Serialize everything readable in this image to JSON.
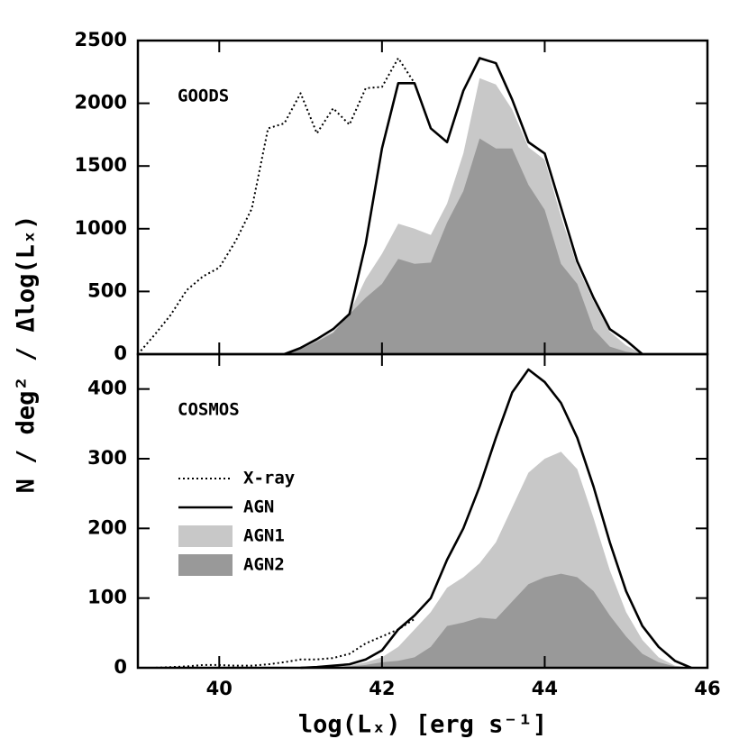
{
  "chart_data": [
    {
      "type": "line",
      "label": "GOODS",
      "ylabel": "N / deg² / Δlog(Lₓ)",
      "x": [
        39,
        39.2,
        39.4,
        39.6,
        39.8,
        40,
        40.2,
        40.4,
        40.6,
        40.8,
        41,
        41.2,
        41.4,
        41.6,
        41.8,
        42,
        42.2,
        42.4,
        42.6,
        42.8,
        43,
        43.2,
        43.4,
        43.6,
        43.8,
        44,
        44.2,
        44.4,
        44.6,
        44.8,
        45,
        45.2,
        45.4,
        45.6,
        45.8
      ],
      "xlim": [
        39,
        46
      ],
      "ylim": [
        0,
        2500
      ],
      "yticks": [
        0,
        500,
        1000,
        1500,
        2000,
        2500
      ],
      "series": [
        {
          "name": "X-ray",
          "style": "dotted",
          "color": "#000000",
          "values": [
            0,
            150,
            310,
            510,
            620,
            690,
            900,
            1160,
            1800,
            1840,
            2080,
            1760,
            1960,
            1830,
            2120,
            2130,
            2360,
            2160,
            null,
            null,
            null,
            null,
            null,
            null,
            null,
            null,
            null,
            null,
            null,
            null,
            null,
            null,
            null,
            null,
            null
          ]
        },
        {
          "name": "AGN",
          "style": "solid",
          "color": "#000000",
          "values": [
            null,
            null,
            null,
            null,
            null,
            null,
            null,
            null,
            null,
            0,
            50,
            120,
            200,
            320,
            880,
            1640,
            2160,
            2160,
            1800,
            1690,
            2100,
            2360,
            2320,
            2030,
            1690,
            1600,
            1170,
            740,
            450,
            200,
            110,
            0,
            null,
            null,
            null
          ]
        },
        {
          "name": "AGN1",
          "style": "area",
          "color": "#c8c8c8",
          "values": [
            null,
            null,
            null,
            null,
            null,
            null,
            null,
            null,
            null,
            0,
            40,
            110,
            180,
            330,
            600,
            800,
            1040,
            1000,
            950,
            1200,
            1600,
            2200,
            2150,
            1950,
            1650,
            1550,
            1100,
            700,
            420,
            180,
            70,
            0,
            null,
            null,
            null
          ]
        },
        {
          "name": "AGN2",
          "style": "area",
          "color": "#999999",
          "values": [
            null,
            null,
            null,
            null,
            null,
            null,
            null,
            null,
            null,
            0,
            40,
            100,
            170,
            320,
            450,
            560,
            760,
            720,
            730,
            1050,
            1300,
            1720,
            1640,
            1640,
            1350,
            1150,
            720,
            560,
            200,
            60,
            20,
            0,
            null,
            null,
            null
          ]
        }
      ]
    },
    {
      "type": "line",
      "label": "COSMOS",
      "xlabel": "log(Lₓ) [erg s⁻¹]",
      "legend": "center left",
      "x": [
        39,
        39.2,
        39.4,
        39.6,
        39.8,
        40,
        40.2,
        40.4,
        40.6,
        40.8,
        41,
        41.2,
        41.4,
        41.6,
        41.8,
        42,
        42.2,
        42.4,
        42.6,
        42.8,
        43,
        43.2,
        43.4,
        43.6,
        43.8,
        44,
        44.2,
        44.4,
        44.6,
        44.8,
        45,
        45.2,
        45.4,
        45.6,
        45.8
      ],
      "xlim": [
        39,
        46
      ],
      "xticks": [
        40,
        42,
        44,
        46
      ],
      "ylim": [
        0,
        450
      ],
      "yticks": [
        0,
        100,
        200,
        300,
        400
      ],
      "series": [
        {
          "name": "X-ray",
          "style": "dotted",
          "color": "#000000",
          "values": [
            0,
            0,
            1,
            2,
            4,
            4,
            3,
            3,
            5,
            8,
            12,
            12,
            14,
            20,
            35,
            45,
            55,
            70,
            null,
            null,
            null,
            null,
            null,
            null,
            null,
            null,
            null,
            null,
            null,
            null,
            null,
            null,
            null,
            null,
            null
          ]
        },
        {
          "name": "AGN",
          "style": "solid",
          "color": "#000000",
          "values": [
            null,
            null,
            null,
            null,
            null,
            null,
            null,
            null,
            null,
            null,
            0,
            1,
            3,
            5,
            12,
            25,
            55,
            75,
            100,
            155,
            200,
            260,
            330,
            395,
            428,
            410,
            380,
            330,
            260,
            180,
            110,
            60,
            30,
            10,
            0
          ]
        },
        {
          "name": "AGN1",
          "style": "area",
          "color": "#c8c8c8",
          "values": [
            null,
            null,
            null,
            null,
            null,
            null,
            null,
            null,
            null,
            null,
            0,
            0,
            1,
            3,
            8,
            15,
            30,
            55,
            80,
            115,
            130,
            150,
            180,
            230,
            280,
            300,
            310,
            285,
            215,
            140,
            80,
            40,
            15,
            3,
            0
          ]
        },
        {
          "name": "AGN2",
          "style": "area",
          "color": "#999999",
          "values": [
            null,
            null,
            null,
            null,
            null,
            null,
            null,
            null,
            null,
            null,
            0,
            0,
            1,
            2,
            4,
            8,
            10,
            15,
            30,
            60,
            65,
            72,
            70,
            95,
            120,
            130,
            135,
            130,
            110,
            75,
            45,
            20,
            8,
            2,
            0
          ]
        }
      ]
    }
  ]
}
